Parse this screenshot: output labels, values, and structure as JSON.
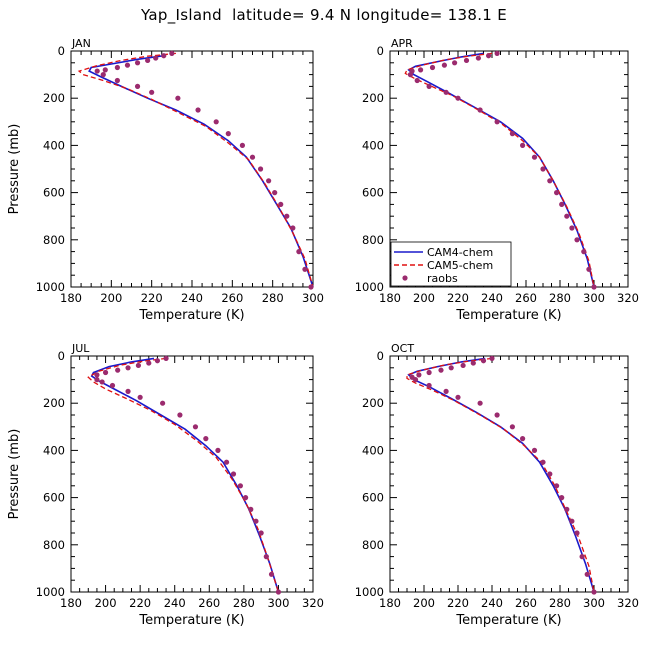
{
  "title": "Yap_Island  latitude= 9.4 N longitude= 138.1 E",
  "colors": {
    "cam4": "#1a1acc",
    "cam5": "#e01010",
    "raobs": "#9b2b6e"
  },
  "legend": [
    "CAM4-chem",
    "CAM5-chem",
    "raobs"
  ],
  "chart_data": [
    {
      "type": "line",
      "panel": "JAN",
      "xlabel": "Temperature (K)",
      "ylabel": "Pressure (mb)",
      "xlim": [
        180,
        300
      ],
      "ylim": [
        1000,
        0
      ],
      "y_inverted": true,
      "xticks": [
        180,
        200,
        220,
        240,
        260,
        280,
        300
      ],
      "yticks": [
        0,
        200,
        400,
        600,
        800,
        1000
      ],
      "series": [
        {
          "name": "CAM4-chem",
          "style": "solid",
          "x": [
            226,
            213,
            200,
            190,
            189,
            195,
            205,
            218,
            232,
            246,
            258,
            267,
            275,
            282,
            289,
            295,
            300
          ],
          "y": [
            20,
            35,
            55,
            70,
            85,
            110,
            150,
            200,
            250,
            310,
            380,
            450,
            550,
            650,
            750,
            870,
            1000
          ]
        },
        {
          "name": "CAM5-chem",
          "style": "dashed",
          "x": [
            232,
            218,
            205,
            193,
            184,
            186,
            196,
            208,
            220,
            233,
            247,
            258,
            268,
            276,
            283,
            290,
            296,
            300
          ],
          "y": [
            10,
            22,
            40,
            62,
            85,
            100,
            125,
            160,
            205,
            260,
            320,
            390,
            460,
            560,
            660,
            770,
            880,
            1000
          ]
        },
        {
          "name": "raobs",
          "style": "markers",
          "x": [
            230,
            226,
            222,
            218,
            213,
            208,
            203,
            197,
            193,
            196,
            203,
            213,
            220,
            233,
            243,
            252,
            258,
            265,
            270,
            274,
            278,
            281,
            284,
            287,
            290,
            293,
            296,
            299
          ],
          "y": [
            10,
            20,
            30,
            40,
            50,
            60,
            70,
            80,
            85,
            100,
            125,
            150,
            175,
            200,
            250,
            300,
            350,
            400,
            450,
            500,
            550,
            600,
            650,
            700,
            750,
            850,
            925,
            1000
          ]
        }
      ]
    },
    {
      "type": "line",
      "panel": "APR",
      "xlabel": "Temperature (K)",
      "ylabel": "",
      "xlim": [
        180,
        320
      ],
      "ylim": [
        1000,
        0
      ],
      "y_inverted": true,
      "xticks": [
        180,
        200,
        220,
        240,
        260,
        280,
        300,
        320
      ],
      "yticks": [
        0,
        200,
        400,
        600,
        800,
        1000
      ],
      "series": [
        {
          "name": "CAM4-chem",
          "style": "solid",
          "x": [
            235,
            222,
            208,
            195,
            191,
            194,
            202,
            215,
            230,
            245,
            258,
            268,
            276,
            283,
            290,
            296,
            300
          ],
          "y": [
            10,
            25,
            45,
            65,
            80,
            100,
            130,
            180,
            240,
            300,
            370,
            450,
            550,
            650,
            760,
            880,
            1000
          ]
        },
        {
          "name": "CAM5-chem",
          "style": "dashed",
          "x": [
            240,
            226,
            212,
            199,
            190,
            189,
            194,
            203,
            217,
            232,
            246,
            258,
            268,
            276,
            284,
            291,
            297,
            300
          ],
          "y": [
            10,
            22,
            38,
            60,
            80,
            95,
            115,
            145,
            190,
            250,
            310,
            380,
            450,
            550,
            660,
            770,
            890,
            1000
          ]
        },
        {
          "name": "raobs",
          "style": "markers",
          "x": [
            243,
            238,
            232,
            225,
            218,
            212,
            205,
            198,
            193,
            192,
            196,
            203,
            213,
            220,
            233,
            243,
            252,
            258,
            265,
            270,
            274,
            278,
            281,
            284,
            287,
            290,
            294,
            297,
            300
          ],
          "y": [
            10,
            20,
            30,
            40,
            50,
            60,
            70,
            80,
            85,
            100,
            125,
            150,
            175,
            200,
            250,
            300,
            350,
            400,
            450,
            500,
            550,
            600,
            650,
            700,
            750,
            800,
            850,
            925,
            1000
          ]
        }
      ]
    },
    {
      "type": "line",
      "panel": "JUL",
      "xlabel": "Temperature (K)",
      "ylabel": "Pressure (mb)",
      "xlim": [
        180,
        320
      ],
      "ylim": [
        1000,
        0
      ],
      "y_inverted": true,
      "xticks": [
        180,
        200,
        220,
        240,
        260,
        280,
        300,
        320
      ],
      "yticks": [
        0,
        200,
        400,
        600,
        800,
        1000
      ],
      "series": [
        {
          "name": "CAM4-chem",
          "style": "solid",
          "x": [
            228,
            215,
            202,
            193,
            192,
            196,
            205,
            218,
            232,
            246,
            258,
            268,
            276,
            283,
            289,
            295,
            300
          ],
          "y": [
            10,
            25,
            45,
            70,
            85,
            105,
            140,
            190,
            250,
            310,
            380,
            450,
            550,
            650,
            760,
            880,
            1000
          ]
        },
        {
          "name": "CAM5-chem",
          "style": "dashed",
          "x": [
            235,
            222,
            208,
            196,
            190,
            193,
            200,
            212,
            226,
            240,
            253,
            264,
            273,
            281,
            288,
            294,
            300
          ],
          "y": [
            10,
            22,
            40,
            65,
            90,
            110,
            140,
            180,
            230,
            290,
            360,
            430,
            520,
            620,
            730,
            860,
            1000
          ]
        },
        {
          "name": "raobs",
          "style": "markers",
          "x": [
            235,
            230,
            225,
            219,
            213,
            207,
            200,
            195,
            195,
            198,
            204,
            213,
            220,
            233,
            243,
            252,
            258,
            265,
            270,
            274,
            278,
            281,
            284,
            287,
            290,
            293,
            296,
            300
          ],
          "y": [
            10,
            20,
            30,
            40,
            50,
            60,
            70,
            80,
            100,
            110,
            125,
            150,
            175,
            200,
            250,
            300,
            350,
            400,
            450,
            500,
            550,
            600,
            650,
            700,
            750,
            850,
            925,
            1000
          ]
        }
      ]
    },
    {
      "type": "line",
      "panel": "OCT",
      "xlabel": "Temperature (K)",
      "ylabel": "",
      "xlim": [
        180,
        320
      ],
      "ylim": [
        1000,
        0
      ],
      "y_inverted": true,
      "xticks": [
        180,
        200,
        220,
        240,
        260,
        280,
        300,
        320
      ],
      "yticks": [
        0,
        200,
        400,
        600,
        800,
        1000
      ],
      "series": [
        {
          "name": "CAM4-chem",
          "style": "solid",
          "x": [
            236,
            222,
            208,
            196,
            191,
            194,
            203,
            216,
            231,
            245,
            258,
            268,
            276,
            283,
            289,
            295,
            300
          ],
          "y": [
            10,
            25,
            45,
            65,
            80,
            100,
            130,
            180,
            240,
            300,
            370,
            450,
            550,
            650,
            760,
            880,
            1000
          ]
        },
        {
          "name": "CAM5-chem",
          "style": "dashed",
          "x": [
            240,
            226,
            212,
            199,
            190,
            190,
            195,
            205,
            218,
            233,
            247,
            259,
            269,
            277,
            284,
            291,
            297,
            300
          ],
          "y": [
            10,
            22,
            38,
            60,
            80,
            95,
            115,
            145,
            190,
            250,
            310,
            380,
            450,
            550,
            660,
            770,
            890,
            1000
          ]
        },
        {
          "name": "raobs",
          "style": "markers",
          "x": [
            240,
            235,
            229,
            223,
            216,
            210,
            203,
            197,
            193,
            195,
            203,
            213,
            220,
            233,
            243,
            252,
            258,
            265,
            270,
            274,
            278,
            281,
            284,
            287,
            290,
            293,
            296,
            300
          ],
          "y": [
            10,
            20,
            30,
            40,
            50,
            60,
            70,
            80,
            90,
            100,
            125,
            150,
            175,
            200,
            250,
            300,
            350,
            400,
            450,
            500,
            550,
            600,
            650,
            700,
            750,
            850,
            925,
            1000
          ]
        }
      ]
    }
  ]
}
